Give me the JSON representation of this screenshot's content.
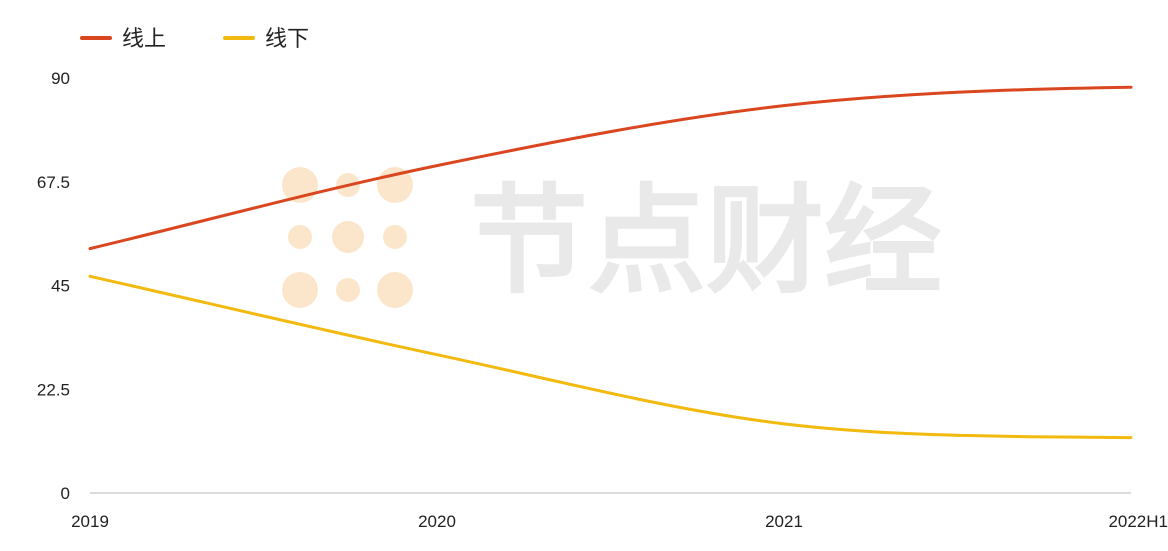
{
  "chart_data": {
    "type": "line",
    "title": "",
    "xlabel": "",
    "ylabel": "",
    "categories": [
      "2019",
      "2020",
      "2021",
      "2022H1"
    ],
    "series": [
      {
        "name": "线上",
        "color": "#d9461f",
        "values": [
          53,
          71,
          84,
          88
        ]
      },
      {
        "name": "线下",
        "color": "#f2b90f",
        "values": [
          47,
          30,
          15,
          12
        ]
      }
    ],
    "ylim": [
      0,
      90
    ],
    "yticks": [
      "0",
      "22.5",
      "45",
      "67.5",
      "90"
    ],
    "grid": false,
    "legend": "top-left"
  },
  "watermark": {
    "text": "节点财经",
    "color": "#e9e9e9",
    "accent": "#fbe6cc"
  }
}
